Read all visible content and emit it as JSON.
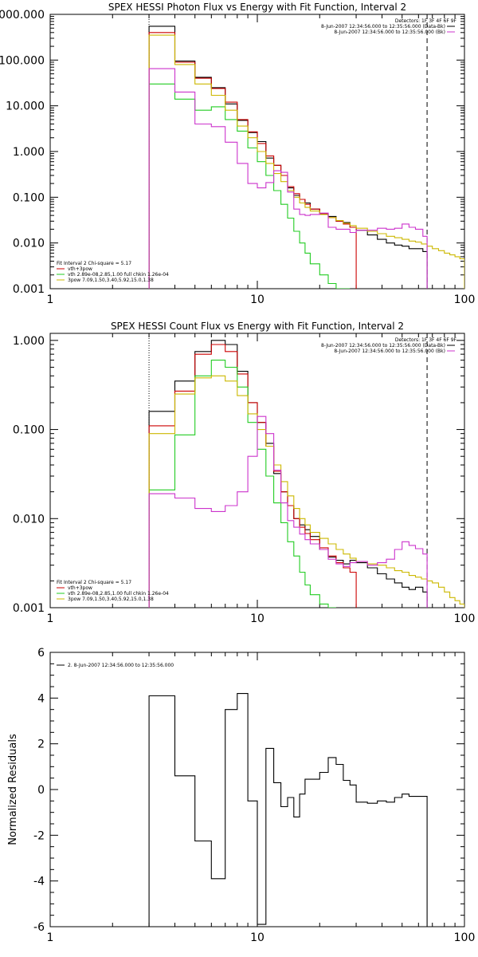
{
  "chart_data": [
    {
      "type": "line",
      "title": "SPEX HESSI Photon Flux vs Energy with Fit Function, Interval 2",
      "xlabel": "",
      "ylabel": "",
      "x_scale": "log",
      "y_scale": "log",
      "xlim": [
        1,
        100
      ],
      "ylim": [
        0.001,
        1000
      ],
      "x_ticks": [
        {
          "v": 1,
          "label": "1"
        },
        {
          "v": 10,
          "label": "10"
        },
        {
          "v": 100,
          "label": "100"
        }
      ],
      "y_ticks": [
        {
          "v": 0.001,
          "label": "0.001"
        },
        {
          "v": 0.01,
          "label": "0.010"
        },
        {
          "v": 0.1,
          "label": "0.100"
        },
        {
          "v": 1,
          "label": "1.000"
        },
        {
          "v": 10,
          "label": "10.000"
        },
        {
          "v": 100,
          "label": "100.000"
        },
        {
          "v": 1000,
          "label": "1000.000"
        }
      ],
      "header": {
        "detectors": "Detectors: 1F 3F 4F 6F 9F",
        "lines": [
          {
            "text": "8-Jun-2007 12:34:56.000 to 12:35:56.000 (Data-Bk)",
            "color": "#000000"
          },
          {
            "text": "8-Jun-2007 12:34:56.000 to 12:35:56.000 (Bk)",
            "color": "#cc33cc"
          }
        ]
      },
      "legend": {
        "position": "bottom-left",
        "title": "Fit Interval 2   Chi-square = 5.17",
        "entries": [
          {
            "text": "vth+3pow",
            "color": "#cc0000"
          },
          {
            "text": "vth 2.89e-08,2.85,1.00   full chkin 1.26e-04",
            "color": "#22cc22"
          },
          {
            "text": "3pow 7.09,1.50,3.40,5.92,15.0,1.38",
            "color": "#ccb800"
          }
        ]
      },
      "vlines": [
        {
          "x": 3,
          "style": "dotted",
          "color": "#000000"
        },
        {
          "x": 66,
          "style": "dashed",
          "color": "#000000"
        }
      ],
      "series": [
        {
          "role": "data-bk",
          "color": "#000000",
          "edges": [
            3,
            4,
            5,
            6,
            7,
            8,
            9,
            10,
            11,
            12,
            13,
            14,
            15,
            16,
            17,
            18,
            20,
            22,
            24,
            26,
            28,
            30,
            34,
            38,
            42,
            46,
            50,
            54,
            58,
            63,
            66
          ],
          "values": [
            550,
            95,
            42,
            25,
            11,
            4.8,
            2.6,
            1.65,
            0.72,
            0.5,
            0.3,
            0.16,
            0.11,
            0.09,
            0.075,
            0.055,
            0.043,
            0.038,
            0.03,
            0.028,
            0.022,
            0.019,
            0.015,
            0.012,
            0.01,
            0.009,
            0.0085,
            0.0075,
            0.0075,
            0.0065
          ]
        },
        {
          "role": "vth+3pow",
          "color": "#cc0000",
          "edges": [
            3,
            4,
            5,
            6,
            7,
            8,
            9,
            10,
            11,
            12,
            13,
            14,
            15,
            16,
            17,
            18,
            20,
            22,
            24,
            26,
            28,
            30
          ],
          "values": [
            400,
            90,
            40,
            24,
            12,
            5,
            2.7,
            1.5,
            0.8,
            0.5,
            0.3,
            0.17,
            0.12,
            0.09,
            0.07,
            0.055,
            0.044,
            0.036,
            0.03,
            0.026,
            0.022
          ]
        },
        {
          "role": "vth",
          "color": "#22cc22",
          "edges": [
            3,
            4,
            5,
            6,
            7,
            8,
            9,
            10,
            11,
            12,
            13,
            14,
            15,
            16,
            17,
            18,
            20,
            22,
            24,
            26,
            28
          ],
          "values": [
            30,
            14,
            8,
            9.5,
            5,
            2.8,
            1.2,
            0.6,
            0.3,
            0.14,
            0.07,
            0.035,
            0.018,
            0.01,
            0.006,
            0.0035,
            0.002,
            0.0013,
            0.001,
            0.001
          ]
        },
        {
          "role": "3pow",
          "color": "#ccb800",
          "edges": [
            3,
            4,
            5,
            6,
            7,
            8,
            9,
            10,
            11,
            12,
            13,
            14,
            15,
            16,
            17,
            18,
            20,
            22,
            24,
            26,
            28,
            30,
            34,
            38,
            42,
            46,
            50,
            54,
            58,
            62,
            66,
            70,
            75,
            80,
            85,
            90,
            95,
            100
          ],
          "values": [
            350,
            80,
            30,
            17,
            8,
            3.6,
            2.0,
            1.0,
            0.55,
            0.33,
            0.22,
            0.14,
            0.1,
            0.075,
            0.06,
            0.05,
            0.042,
            0.036,
            0.031,
            0.027,
            0.024,
            0.021,
            0.018,
            0.016,
            0.014,
            0.013,
            0.012,
            0.011,
            0.0105,
            0.0095,
            0.0085,
            0.0075,
            0.0068,
            0.006,
            0.0055,
            0.005,
            0.0045
          ]
        },
        {
          "role": "bk",
          "color": "#cc33cc",
          "edges": [
            3,
            4,
            5,
            6,
            7,
            8,
            9,
            10,
            11,
            12,
            13,
            14,
            15,
            16,
            17,
            18,
            20,
            22,
            24,
            26,
            28,
            30,
            34,
            38,
            42,
            46,
            50,
            54,
            58,
            63,
            66
          ],
          "values": [
            65,
            20,
            4,
            3.5,
            1.6,
            0.55,
            0.2,
            0.16,
            0.21,
            0.38,
            0.35,
            0.13,
            0.055,
            0.042,
            0.04,
            0.042,
            0.045,
            0.022,
            0.02,
            0.02,
            0.017,
            0.019,
            0.019,
            0.021,
            0.02,
            0.021,
            0.026,
            0.022,
            0.02,
            0.014
          ]
        }
      ]
    },
    {
      "type": "line",
      "title": "SPEX HESSI Count Flux vs Energy with Fit Function, Interval 2",
      "xlabel": "",
      "ylabel": "",
      "x_scale": "log",
      "y_scale": "log",
      "xlim": [
        1,
        100
      ],
      "ylim": [
        0.001,
        1.2
      ],
      "x_ticks": [
        {
          "v": 1,
          "label": "1"
        },
        {
          "v": 10,
          "label": "10"
        },
        {
          "v": 100,
          "label": "100"
        }
      ],
      "y_ticks": [
        {
          "v": 0.001,
          "label": "0.001"
        },
        {
          "v": 0.01,
          "label": "0.010"
        },
        {
          "v": 0.1,
          "label": "0.100"
        },
        {
          "v": 1,
          "label": "1.000"
        }
      ],
      "header": {
        "detectors": "Detectors: 1F 3F 4F 6F 9F",
        "lines": [
          {
            "text": "8-Jun-2007 12:34:56.000 to 12:35:56.000 (Data-Bk)",
            "color": "#000000"
          },
          {
            "text": "8-Jun-2007 12:34:56.000 to 12:35:56.000 (Bk)",
            "color": "#cc33cc"
          }
        ]
      },
      "legend": {
        "position": "bottom-left",
        "title": "Fit Interval 2   Chi-square = 5.17",
        "entries": [
          {
            "text": "vth+3pow",
            "color": "#cc0000"
          },
          {
            "text": "vth 2.89e-08,2.85,1.00   full chkin 1.26e-04",
            "color": "#22cc22"
          },
          {
            "text": "3pow 7.09,1.50,3.40,5.92,15.0,1.38",
            "color": "#ccb800"
          }
        ]
      },
      "vlines": [
        {
          "x": 3,
          "style": "dotted",
          "color": "#000000"
        },
        {
          "x": 66,
          "style": "dashed",
          "color": "#000000"
        }
      ],
      "series": [
        {
          "role": "data-bk",
          "color": "#000000",
          "edges": [
            3,
            4,
            5,
            6,
            7,
            8,
            9,
            10,
            11,
            12,
            13,
            14,
            15,
            16,
            17,
            18,
            20,
            22,
            24,
            26,
            28,
            30,
            34,
            38,
            42,
            46,
            50,
            54,
            58,
            63,
            66
          ],
          "values": [
            0.16,
            0.35,
            0.75,
            1.0,
            0.9,
            0.45,
            0.2,
            0.12,
            0.07,
            0.032,
            0.02,
            0.014,
            0.01,
            0.0085,
            0.0075,
            0.0063,
            0.0045,
            0.0037,
            0.0034,
            0.0031,
            0.0034,
            0.0032,
            0.0028,
            0.0024,
            0.0021,
            0.0019,
            0.0017,
            0.0016,
            0.0017,
            0.0015
          ]
        },
        {
          "role": "vth+3pow",
          "color": "#cc0000",
          "edges": [
            3,
            4,
            5,
            6,
            7,
            8,
            9,
            10,
            11,
            12,
            13,
            14,
            15,
            16,
            17,
            18,
            20,
            22,
            24,
            26,
            28,
            30
          ],
          "values": [
            0.11,
            0.27,
            0.7,
            0.9,
            0.75,
            0.42,
            0.2,
            0.12,
            0.065,
            0.034,
            0.02,
            0.014,
            0.01,
            0.008,
            0.0068,
            0.0058,
            0.0047,
            0.0038,
            0.0032,
            0.0028,
            0.0025
          ]
        },
        {
          "role": "vth",
          "color": "#22cc22",
          "edges": [
            3,
            4,
            5,
            6,
            7,
            8,
            9,
            10,
            11,
            12,
            13,
            14,
            15,
            16,
            17,
            18,
            20,
            22,
            24
          ],
          "values": [
            0.021,
            0.087,
            0.4,
            0.6,
            0.5,
            0.3,
            0.12,
            0.06,
            0.03,
            0.015,
            0.009,
            0.0055,
            0.0038,
            0.0025,
            0.0018,
            0.0014,
            0.0011,
            0.001
          ]
        },
        {
          "role": "3pow",
          "color": "#ccb800",
          "edges": [
            3,
            4,
            5,
            6,
            7,
            8,
            9,
            10,
            11,
            12,
            13,
            14,
            15,
            16,
            17,
            18,
            20,
            22,
            24,
            26,
            28,
            30,
            34,
            38,
            42,
            46,
            50,
            54,
            58,
            62,
            66,
            70,
            75,
            80,
            85,
            90,
            95,
            100
          ],
          "values": [
            0.09,
            0.25,
            0.38,
            0.4,
            0.35,
            0.24,
            0.15,
            0.1,
            0.065,
            0.04,
            0.026,
            0.018,
            0.013,
            0.01,
            0.0085,
            0.007,
            0.006,
            0.0052,
            0.0045,
            0.004,
            0.0036,
            0.0033,
            0.0031,
            0.003,
            0.0028,
            0.0026,
            0.0025,
            0.0023,
            0.0022,
            0.0021,
            0.002,
            0.0019,
            0.0017,
            0.0015,
            0.0013,
            0.0012,
            0.0011
          ]
        },
        {
          "role": "bk",
          "color": "#cc33cc",
          "edges": [
            3,
            4,
            5,
            6,
            7,
            8,
            9,
            10,
            11,
            12,
            13,
            14,
            15,
            16,
            17,
            18,
            20,
            22,
            24,
            26,
            28,
            30,
            34,
            38,
            42,
            46,
            50,
            54,
            58,
            63,
            66
          ],
          "values": [
            0.019,
            0.017,
            0.013,
            0.012,
            0.014,
            0.02,
            0.05,
            0.14,
            0.09,
            0.035,
            0.015,
            0.0095,
            0.008,
            0.0067,
            0.0058,
            0.0052,
            0.0045,
            0.0035,
            0.0031,
            0.0029,
            0.0032,
            0.0033,
            0.003,
            0.0032,
            0.0035,
            0.0045,
            0.0055,
            0.005,
            0.0046,
            0.004
          ]
        }
      ]
    },
    {
      "type": "line",
      "title": "",
      "xlabel": "",
      "ylabel": "Normalized Residuals",
      "x_scale": "log",
      "y_scale": "linear",
      "xlim": [
        1,
        100
      ],
      "ylim": [
        -6,
        6
      ],
      "x_ticks": [
        {
          "v": 1,
          "label": "1"
        },
        {
          "v": 10,
          "label": "10"
        },
        {
          "v": 100,
          "label": "100"
        }
      ],
      "y_ticks": [
        {
          "v": -6,
          "label": "-6"
        },
        {
          "v": -4,
          "label": "-4"
        },
        {
          "v": -2,
          "label": "-2"
        },
        {
          "v": 0,
          "label": "0"
        },
        {
          "v": 2,
          "label": "2"
        },
        {
          "v": 4,
          "label": "4"
        },
        {
          "v": 6,
          "label": "6"
        }
      ],
      "legend": {
        "position": "top-left",
        "title": "",
        "entries": [
          {
            "text": "2.  8-Jun-2007 12:34:56.000 to 12:35:56.000",
            "color": "#000000"
          }
        ]
      },
      "vlines": [],
      "series": [
        {
          "role": "residuals",
          "color": "#000000",
          "edges": [
            3,
            4,
            5,
            6,
            7,
            8,
            9,
            10,
            11,
            12,
            13,
            14,
            15,
            16,
            17,
            18,
            20,
            22,
            24,
            26,
            28,
            30,
            34,
            38,
            42,
            46,
            50,
            54,
            58,
            63,
            66
          ],
          "values": [
            4.1,
            0.6,
            -2.25,
            -3.9,
            3.5,
            4.2,
            -0.5,
            -5.9,
            1.8,
            0.3,
            -0.75,
            -0.35,
            -1.2,
            -0.2,
            0.45,
            0.45,
            0.75,
            1.4,
            1.1,
            0.4,
            0.2,
            -0.55,
            -0.6,
            -0.5,
            -0.55,
            -0.35,
            -0.2,
            -0.3,
            -0.3,
            -0.3
          ]
        }
      ]
    }
  ]
}
